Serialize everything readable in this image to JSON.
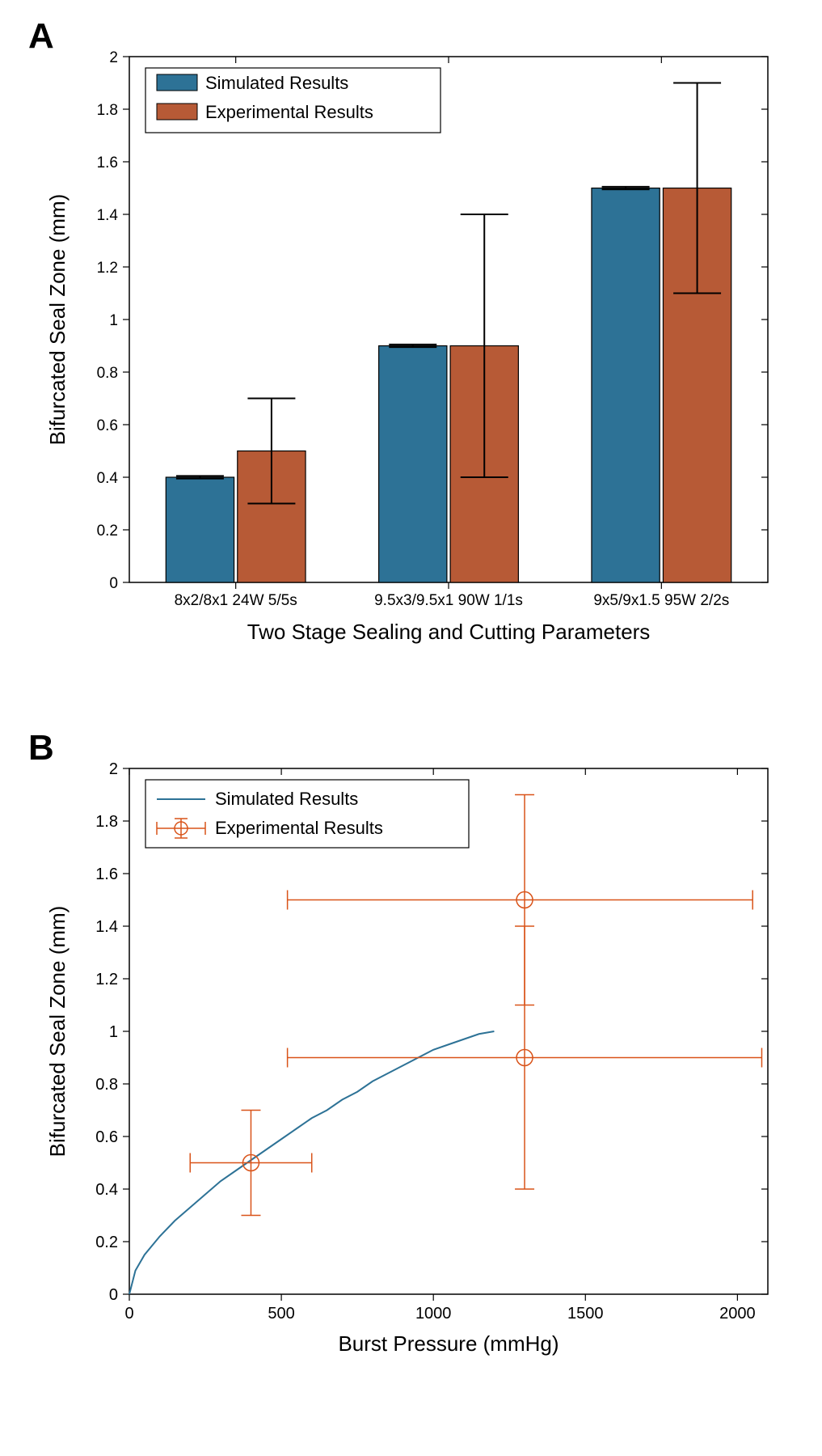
{
  "panelA": {
    "label": "A",
    "type": "bar",
    "title": "",
    "ylabel": "Bifurcated Seal Zone (mm)",
    "xlabel": "Two Stage Sealing and Cutting Parameters",
    "categories": [
      "8x2/8x1 24W 5/5s",
      "9.5x3/9.5x1 90W 1/1s",
      "9x5/9x1.5 95W 2/2s"
    ],
    "series": [
      {
        "name": "Simulated Results",
        "color": "#2d7296",
        "values": [
          0.4,
          0.9,
          1.5
        ],
        "err_low": [
          0.005,
          0.005,
          0.005
        ],
        "err_high": [
          0.005,
          0.005,
          0.005
        ]
      },
      {
        "name": "Experimental Results",
        "color": "#b75a36",
        "values": [
          0.5,
          0.9,
          1.5
        ],
        "err_low": [
          0.2,
          0.5,
          0.4
        ],
        "err_high": [
          0.2,
          0.5,
          0.4
        ]
      }
    ],
    "ylim": [
      0,
      2
    ],
    "ytick_step": 0.2,
    "bar_width": 0.32,
    "background_color": "#ffffff",
    "axis_color": "#000000",
    "tick_color": "#000000",
    "errorbar_color": "#000000",
    "label_fontsize": 26,
    "tick_fontsize": 19,
    "legend_fontsize": 22,
    "legend_position": "top-left"
  },
  "panelB": {
    "label": "B",
    "type": "scatter-line",
    "ylabel": "Bifurcated Seal Zone (mm)",
    "xlabel": "Burst Pressure (mmHg)",
    "xlim": [
      0,
      2100
    ],
    "ylim": [
      0,
      2
    ],
    "xtick_step": 500,
    "ytick_step": 0.2,
    "line_series": {
      "name": "Simulated Results",
      "color": "#2d7296",
      "line_width": 2,
      "x": [
        0,
        20,
        50,
        100,
        150,
        200,
        250,
        300,
        350,
        400,
        450,
        500,
        550,
        600,
        650,
        700,
        750,
        800,
        850,
        900,
        950,
        1000,
        1050,
        1100,
        1150,
        1200
      ],
      "y": [
        0,
        0.09,
        0.15,
        0.22,
        0.28,
        0.33,
        0.38,
        0.43,
        0.47,
        0.51,
        0.55,
        0.59,
        0.63,
        0.67,
        0.7,
        0.74,
        0.77,
        0.81,
        0.84,
        0.87,
        0.9,
        0.93,
        0.95,
        0.97,
        0.99,
        1.0
      ]
    },
    "scatter_series": {
      "name": "Experimental Results",
      "color": "#d95319",
      "marker": "circle",
      "marker_size": 10,
      "line_width": 1.5,
      "points": [
        {
          "x": 400,
          "y": 0.5,
          "xerr_low": 200,
          "xerr_high": 200,
          "yerr_low": 0.2,
          "yerr_high": 0.2
        },
        {
          "x": 1300,
          "y": 0.9,
          "xerr_low": 780,
          "xerr_high": 780,
          "yerr_low": 0.5,
          "yerr_high": 0.5
        },
        {
          "x": 1300,
          "y": 1.5,
          "xerr_low": 780,
          "xerr_high": 750,
          "yerr_low": 0.4,
          "yerr_high": 0.4
        }
      ]
    },
    "background_color": "#ffffff",
    "axis_color": "#000000",
    "label_fontsize": 26,
    "tick_fontsize": 20,
    "legend_fontsize": 22,
    "legend_position": "top-left"
  }
}
